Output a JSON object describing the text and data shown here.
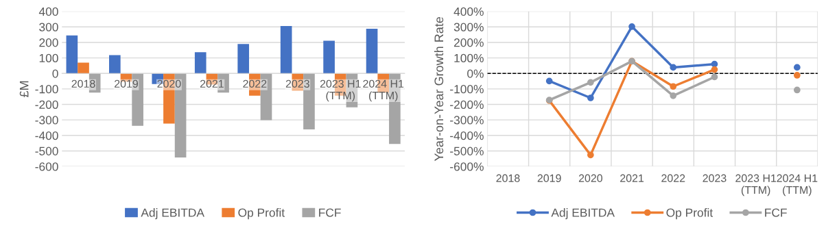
{
  "chart_data": [
    {
      "type": "bar",
      "ylabel": "£M",
      "categories": [
        "2018",
        "2019",
        "2020",
        "2021",
        "2022",
        "2023",
        "2023 H1\n(TTM)",
        "2024 H1\n(TTM)"
      ],
      "series": [
        {
          "name": "Adj EBITDA",
          "color": "#4472c4",
          "values": [
            245,
            118,
            -69,
            137,
            190,
            306,
            211,
            288
          ]
        },
        {
          "name": "Op Profit",
          "color": "#ed7d31",
          "values": [
            69,
            -53,
            -324,
            -72,
            -144,
            -111,
            -144,
            -124
          ]
        },
        {
          "name": "FCF",
          "color": "#a5a5a5",
          "values": [
            -124,
            -338,
            -542,
            -124,
            -302,
            -361,
            -219,
            -455
          ]
        }
      ],
      "ylim": [
        -600,
        400
      ],
      "yticks": [
        -600,
        -500,
        -400,
        -300,
        -200,
        -100,
        0,
        100,
        200,
        300,
        400
      ],
      "grid": "y",
      "legend": "bottom"
    },
    {
      "type": "line",
      "ylabel": "Year-on-Year Growth Rate",
      "categories": [
        "2018",
        "2019",
        "2020",
        "2021",
        "2022",
        "2023",
        "2023 H1\n(TTM)",
        "2024 H1\n(TTM)"
      ],
      "series": [
        {
          "name": "Adj EBITDA",
          "color": "#4472c4",
          "values": [
            null,
            -49,
            -158,
            302,
            39,
            60,
            null,
            39
          ]
        },
        {
          "name": "Op Profit",
          "color": "#ed7d31",
          "values": [
            null,
            -175,
            -526,
            79,
            -84,
            25,
            null,
            -12
          ]
        },
        {
          "name": "FCF",
          "color": "#a5a5a5",
          "values": [
            null,
            -172,
            -58,
            79,
            -144,
            -23,
            null,
            -107
          ]
        }
      ],
      "ylim": [
        -600,
        400
      ],
      "yticks": [
        {
          "value": -600,
          "label": "-600%"
        },
        {
          "value": -500,
          "label": "-500%"
        },
        {
          "value": -400,
          "label": "-400%"
        },
        {
          "value": -300,
          "label": "-300%"
        },
        {
          "value": -200,
          "label": "-200%"
        },
        {
          "value": -100,
          "label": "-100%"
        },
        {
          "value": 0,
          "label": "0%"
        },
        {
          "value": 100,
          "label": "100%"
        },
        {
          "value": 200,
          "label": "200%"
        },
        {
          "value": 300,
          "label": "300%"
        },
        {
          "value": 400,
          "label": "400%"
        }
      ],
      "ref_lines": [
        {
          "axis": "y",
          "value": 0,
          "color": "#000000",
          "line_style": "dashed"
        }
      ],
      "grid": true,
      "legend": "bottom",
      "marker": "circle"
    }
  ]
}
